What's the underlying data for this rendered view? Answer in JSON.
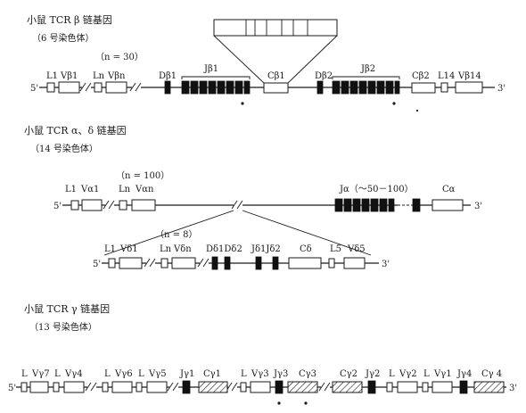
{
  "beta": {
    "title": "小鼠 TCR β 链基因",
    "chromosome": "（6 号染色体）",
    "count": "（n = 30）",
    "five_prime": "5'",
    "three_prime": "3'",
    "labels": {
      "L1": "L1",
      "Vb1": "Vβ1",
      "Ln": "Ln",
      "Vbn": "Vβn",
      "Db1": "Dβ1",
      "Jb1": "Jβ1",
      "Cb1": "Cβ1",
      "Db2": "Dβ2",
      "Jb2": "Jβ2",
      "Cb2": "Cβ2",
      "L14": "L14",
      "Vb14": "Vβ14"
    }
  },
  "alpha": {
    "title": "小鼠 TCR α、δ 链基因",
    "chromosome": "（14 号染色体）",
    "count": "（n = 100）",
    "five_prime": "5'",
    "three_prime": "3'",
    "labels": {
      "L1": "L1",
      "Va1": "Vα1",
      "Ln": "Ln",
      "Van": "Vαn",
      "Ja": "Jα（～50－100）",
      "Ca": "Cα"
    }
  },
  "delta": {
    "count": "（n = 8）",
    "five_prime": "5'",
    "three_prime": "3'",
    "labels": {
      "L1": "L1",
      "Vd1": "Vδ1",
      "Ln": "Ln",
      "Vdn": "Vδn",
      "Dd12": "Dδ1Dδ2",
      "Jd12": "Jδ1Jδ2",
      "Cd": "Cδ",
      "L5": "L5",
      "Vd5": "Vδ5"
    }
  },
  "gamma": {
    "title": "小鼠 TCR γ 链基因",
    "chromosome": "（13 号染色体）",
    "five_prime": "5'",
    "three_prime": "3'",
    "labels": {
      "L_a": "L",
      "Vg7": "Vγ7",
      "L_b": "L",
      "Vg4": "Vγ4",
      "L_c": "L",
      "Vg6": "Vγ6",
      "L_d": "L",
      "Vg5": "Vγ5",
      "Jg1": "Jγ1",
      "Cg1": "Cγ1",
      "L_e": "L",
      "Vg3": "Vγ3",
      "Jg3": "Jγ3",
      "Cg3": "Cγ3",
      "Cg2": "Cγ2",
      "Jg2": "Jγ2",
      "L_f": "L",
      "Vg2": "Vγ2",
      "L_g": "L",
      "Vg1": "Vγ1",
      "Jg4": "Jγ4",
      "Cg4": "Cγ 4"
    }
  }
}
